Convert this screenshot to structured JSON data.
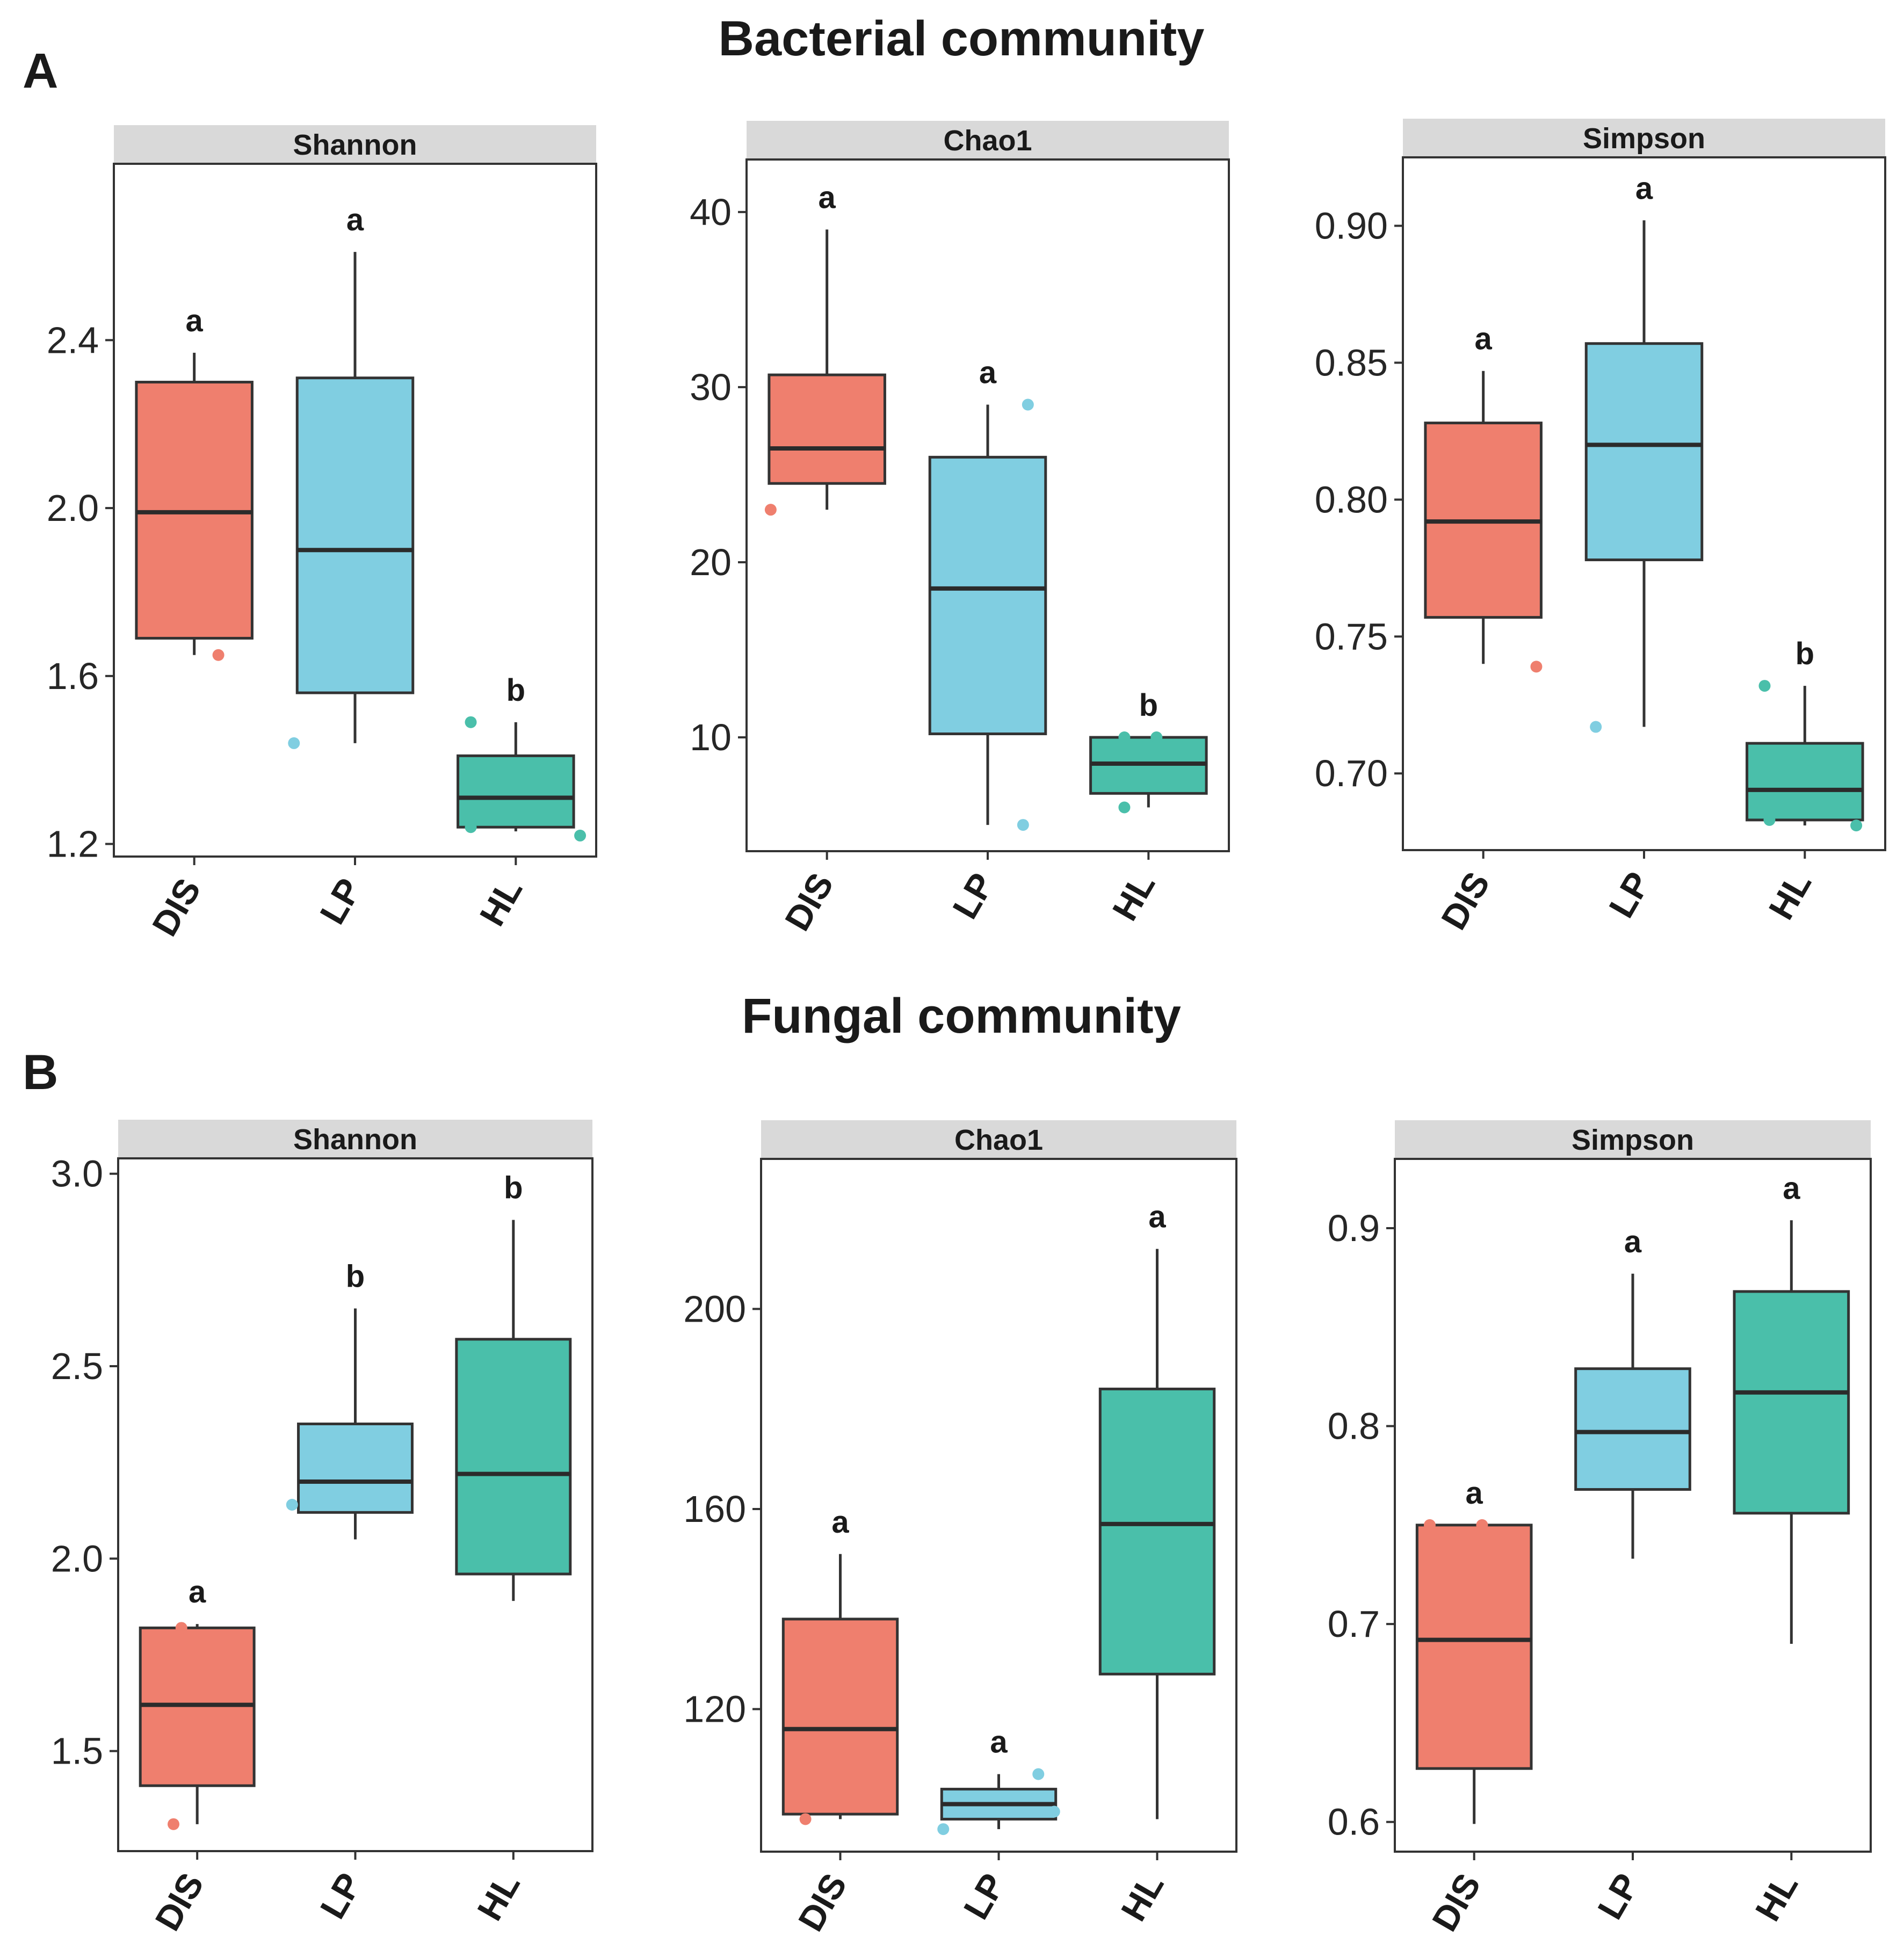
{
  "sections": [
    {
      "letter": "A",
      "title": "Bacterial community"
    },
    {
      "letter": "B",
      "title": "Fungal community"
    }
  ],
  "colors": {
    "DIS": "#ef7f6e",
    "LP": "#80cee1",
    "HL": "#4abfaa",
    "strip": "#d9d9d9",
    "frame": "#333333"
  },
  "chart_data": [
    {
      "type": "boxplot",
      "section": "A",
      "title": "Shannon",
      "categories": [
        "DIS",
        "LP",
        "HL"
      ],
      "ylim": [
        1.17,
        2.82
      ],
      "yticks": [
        1.2,
        1.6,
        2.0,
        2.4
      ],
      "tick_labels": [
        "1.2",
        "1.6",
        "2.0",
        "2.4"
      ],
      "boxes": [
        {
          "group": "DIS",
          "lower_whisker": 1.65,
          "q1": 1.69,
          "median": 1.99,
          "q3": 2.3,
          "upper_whisker": 2.37,
          "letter": "a",
          "points": [
            {
              "x_offset": 0.15,
              "y": 1.65
            }
          ]
        },
        {
          "group": "LP",
          "lower_whisker": 1.44,
          "q1": 1.56,
          "median": 1.9,
          "q3": 2.31,
          "upper_whisker": 2.61,
          "letter": "a",
          "points": [
            {
              "x_offset": -0.38,
              "y": 1.44
            }
          ]
        },
        {
          "group": "HL",
          "lower_whisker": 1.23,
          "q1": 1.24,
          "median": 1.31,
          "q3": 1.41,
          "upper_whisker": 1.49,
          "letter": "b",
          "points": [
            {
              "x_offset": -0.28,
              "y": 1.49
            },
            {
              "x_offset": -0.28,
              "y": 1.24
            },
            {
              "x_offset": 0.4,
              "y": 1.22
            }
          ]
        }
      ]
    },
    {
      "type": "boxplot",
      "section": "A",
      "title": "Chao1",
      "categories": [
        "DIS",
        "LP",
        "HL"
      ],
      "ylim": [
        3.5,
        43.0
      ],
      "yticks": [
        10,
        20,
        30,
        40
      ],
      "tick_labels": [
        "10",
        "20",
        "30",
        "40"
      ],
      "boxes": [
        {
          "group": "DIS",
          "lower_whisker": 23,
          "q1": 24.5,
          "median": 26.5,
          "q3": 30.7,
          "upper_whisker": 39,
          "letter": "a",
          "points": [
            {
              "x_offset": -0.35,
              "y": 23
            }
          ]
        },
        {
          "group": "LP",
          "lower_whisker": 5,
          "q1": 10.2,
          "median": 18.5,
          "q3": 26,
          "upper_whisker": 29,
          "letter": "a",
          "points": [
            {
              "x_offset": 0.25,
              "y": 29
            },
            {
              "x_offset": 0.22,
              "y": 5
            }
          ]
        },
        {
          "group": "HL",
          "lower_whisker": 6,
          "q1": 6.8,
          "median": 8.5,
          "q3": 10,
          "upper_whisker": 10,
          "letter": "b",
          "points": [
            {
              "x_offset": -0.15,
              "y": 10
            },
            {
              "x_offset": 0.05,
              "y": 10
            },
            {
              "x_offset": -0.15,
              "y": 6
            }
          ]
        }
      ]
    },
    {
      "type": "boxplot",
      "section": "A",
      "title": "Simpson",
      "categories": [
        "DIS",
        "LP",
        "HL"
      ],
      "ylim": [
        0.672,
        0.925
      ],
      "yticks": [
        0.7,
        0.75,
        0.8,
        0.85,
        0.9
      ],
      "tick_labels": [
        "0.70",
        "0.75",
        "0.80",
        "0.85",
        "0.90"
      ],
      "boxes": [
        {
          "group": "DIS",
          "lower_whisker": 0.74,
          "q1": 0.757,
          "median": 0.792,
          "q3": 0.828,
          "upper_whisker": 0.847,
          "letter": "a",
          "points": [
            {
              "x_offset": 0.33,
              "y": 0.739
            }
          ]
        },
        {
          "group": "LP",
          "lower_whisker": 0.717,
          "q1": 0.778,
          "median": 0.82,
          "q3": 0.857,
          "upper_whisker": 0.902,
          "letter": "a",
          "points": [
            {
              "x_offset": -0.3,
              "y": 0.717
            }
          ]
        },
        {
          "group": "HL",
          "lower_whisker": 0.681,
          "q1": 0.683,
          "median": 0.694,
          "q3": 0.711,
          "upper_whisker": 0.732,
          "letter": "b",
          "points": [
            {
              "x_offset": -0.25,
              "y": 0.732
            },
            {
              "x_offset": -0.22,
              "y": 0.683
            },
            {
              "x_offset": 0.32,
              "y": 0.681
            }
          ]
        }
      ]
    },
    {
      "type": "boxplot",
      "section": "B",
      "title": "Shannon",
      "categories": [
        "DIS",
        "LP",
        "HL"
      ],
      "ylim": [
        1.24,
        3.04
      ],
      "yticks": [
        1.5,
        2.0,
        2.5,
        3.0
      ],
      "tick_labels": [
        "1.5",
        "2.0",
        "2.5",
        "3.0"
      ],
      "boxes": [
        {
          "group": "DIS",
          "lower_whisker": 1.31,
          "q1": 1.41,
          "median": 1.62,
          "q3": 1.82,
          "upper_whisker": 1.83,
          "letter": "a",
          "points": [
            {
              "x_offset": -0.15,
              "y": 1.31
            },
            {
              "x_offset": -0.1,
              "y": 1.82
            }
          ]
        },
        {
          "group": "LP",
          "lower_whisker": 2.05,
          "q1": 2.12,
          "median": 2.2,
          "q3": 2.35,
          "upper_whisker": 2.65,
          "letter": "b",
          "points": [
            {
              "x_offset": -0.4,
              "y": 2.14
            }
          ]
        },
        {
          "group": "HL",
          "lower_whisker": 1.89,
          "q1": 1.96,
          "median": 2.22,
          "q3": 2.57,
          "upper_whisker": 2.88,
          "letter": "b",
          "points": []
        }
      ]
    },
    {
      "type": "boxplot",
      "section": "B",
      "title": "Chao1",
      "categories": [
        "DIS",
        "LP",
        "HL"
      ],
      "ylim": [
        91.5,
        230.0
      ],
      "yticks": [
        120,
        160,
        200
      ],
      "tick_labels": [
        "120",
        "160",
        "200"
      ],
      "boxes": [
        {
          "group": "DIS",
          "lower_whisker": 98,
          "q1": 99,
          "median": 116,
          "q3": 138,
          "upper_whisker": 151,
          "letter": "a",
          "points": [
            {
              "x_offset": -0.22,
              "y": 98
            }
          ]
        },
        {
          "group": "LP",
          "lower_whisker": 96,
          "q1": 98,
          "median": 101,
          "q3": 104,
          "upper_whisker": 107,
          "letter": "a",
          "points": [
            {
              "x_offset": -0.35,
              "y": 96
            },
            {
              "x_offset": 0.25,
              "y": 107
            },
            {
              "x_offset": 0.35,
              "y": 99.5
            }
          ]
        },
        {
          "group": "HL",
          "lower_whisker": 98,
          "q1": 127,
          "median": 157,
          "q3": 184,
          "upper_whisker": 212,
          "letter": "a",
          "points": []
        }
      ]
    },
    {
      "type": "boxplot",
      "section": "B",
      "title": "Simpson",
      "categories": [
        "DIS",
        "LP",
        "HL"
      ],
      "ylim": [
        0.585,
        0.935
      ],
      "yticks": [
        0.6,
        0.7,
        0.8,
        0.9
      ],
      "tick_labels": [
        "0.6",
        "0.7",
        "0.8",
        "0.9"
      ],
      "boxes": [
        {
          "group": "DIS",
          "lower_whisker": 0.599,
          "q1": 0.627,
          "median": 0.692,
          "q3": 0.75,
          "upper_whisker": 0.75,
          "letter": "a",
          "points": [
            {
              "x_offset": -0.28,
              "y": 0.75
            },
            {
              "x_offset": 0.05,
              "y": 0.75
            }
          ]
        },
        {
          "group": "LP",
          "lower_whisker": 0.733,
          "q1": 0.768,
          "median": 0.797,
          "q3": 0.829,
          "upper_whisker": 0.877,
          "letter": "a",
          "points": []
        },
        {
          "group": "HL",
          "lower_whisker": 0.69,
          "q1": 0.756,
          "median": 0.817,
          "q3": 0.868,
          "upper_whisker": 0.904,
          "letter": "a",
          "points": []
        }
      ]
    }
  ]
}
